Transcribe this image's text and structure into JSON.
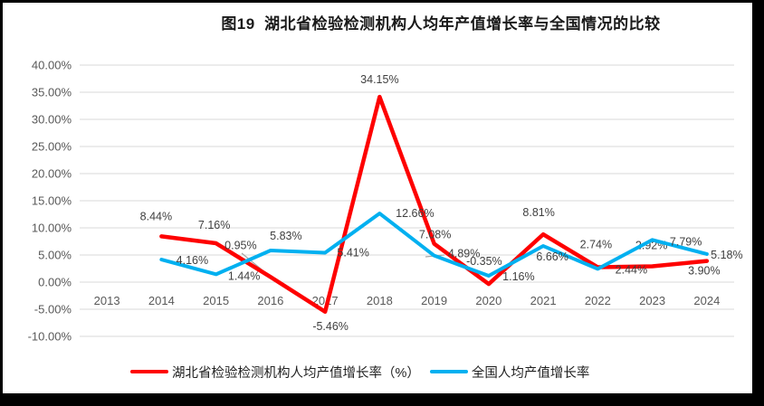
{
  "figure": {
    "title": "图19  湖北省检验检测机构人均年产值增长率与全国情况的比较"
  },
  "chart_data": {
    "type": "line",
    "title": "图19  湖北省检验检测机构人均年产值增长率与全国情况的比较",
    "categories": [
      "2013",
      "2014",
      "2015",
      "2016",
      "2017",
      "2018",
      "2019",
      "2020",
      "2021",
      "2022",
      "2023",
      "2024"
    ],
    "series": [
      {
        "name": "湖北省检验检测机构人均产值增长率（%）",
        "color": "#FE0000",
        "values": [
          null,
          8.44,
          7.16,
          0.95,
          -5.46,
          34.15,
          7.08,
          -0.35,
          8.81,
          2.74,
          2.92,
          3.9
        ],
        "labels": [
          null,
          "8.44%",
          "7.16%",
          "0.95%",
          "-5.46%",
          "34.15%",
          "7.08%",
          "-0.35%",
          "8.81%",
          "2.74%",
          "2.92%",
          "3.90%"
        ]
      },
      {
        "name": "全国人均产值增长率",
        "color": "#00B0F0",
        "values": [
          null,
          4.16,
          1.44,
          5.83,
          5.41,
          12.66,
          4.89,
          1.16,
          6.66,
          2.44,
          7.79,
          5.18
        ],
        "labels": [
          null,
          "4.16%",
          "1.44%",
          "5.83%",
          "5.41%",
          "12.66%",
          "4.89%",
          "1.16%",
          "6.66%",
          "2.44%",
          "7.79%",
          "5.18%"
        ]
      }
    ],
    "yticks": [
      "40.00%",
      "35.00%",
      "30.00%",
      "25.00%",
      "20.00%",
      "15.00%",
      "10.00%",
      "5.00%",
      "0.00%",
      "-5.00%",
      "-10.00%"
    ],
    "ylim": [
      -10,
      40
    ],
    "ytick_step": 5,
    "grid": true,
    "legend_position": "bottom",
    "label_offsets": [
      [
        null,
        [
          -6,
          -22
        ],
        [
          -2,
          -20
        ],
        [
          -33,
          -35
        ],
        [
          6,
          16
        ],
        [
          0,
          -19
        ],
        [
          1,
          -10
        ],
        [
          -5,
          -25
        ],
        [
          -5,
          -24
        ],
        [
          -2,
          -25
        ],
        [
          -1,
          -23
        ],
        [
          -3,
          11
        ]
      ],
      [
        null,
        [
          34,
          1
        ],
        [
          31,
          2
        ],
        [
          17,
          -16
        ],
        [
          31,
          0
        ],
        [
          39,
          0
        ],
        [
          33,
          -2
        ],
        [
          33,
          1
        ],
        [
          10,
          12
        ],
        [
          37,
          1
        ],
        [
          37,
          2
        ],
        [
          22,
          1
        ]
      ]
    ]
  },
  "colors": {
    "hubei_line": "#FE0000",
    "national_line": "#00B0F0",
    "gridline": "#D9D9D9",
    "leader_line": "#A6A6A6",
    "axis_text": "#595959",
    "data_label_text": "#404040",
    "frame": "#000000"
  }
}
